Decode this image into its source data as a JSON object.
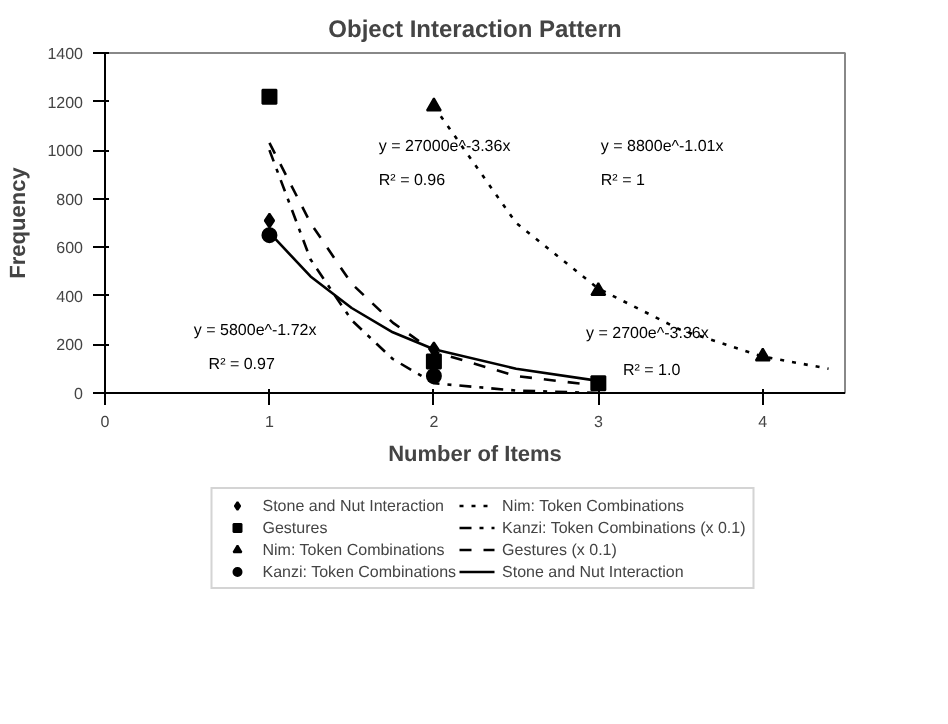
{
  "chart_data": {
    "type": "scatter",
    "title": "Object Interaction Pattern",
    "xlabel": "Number of Items",
    "ylabel": "Frequency",
    "xlim": [
      0,
      4.5
    ],
    "xticks": [
      0,
      1,
      2,
      3,
      4
    ],
    "ylim": [
      0,
      1400
    ],
    "yticks": [
      0,
      200,
      400,
      600,
      800,
      1000,
      1200,
      1400
    ],
    "grid": false,
    "legend": "bottom",
    "series": [
      {
        "name": "Stone and Nut Interaction",
        "marker": "diamond",
        "color": "#000000",
        "x": [
          1,
          2
        ],
        "values": [
          710,
          180
        ]
      },
      {
        "name": "Gestures",
        "marker": "square",
        "color": "#000000",
        "x": [
          1,
          2,
          3
        ],
        "values": [
          1220,
          130,
          40
        ]
      },
      {
        "name": "Nim: Token Combinations",
        "marker": "triangle",
        "color": "#000000",
        "x": [
          2,
          3,
          4
        ],
        "values": [
          1180,
          420,
          150
        ]
      },
      {
        "name": "Kanzi: Token Combinations",
        "marker": "circle",
        "color": "#000000",
        "x": [
          1,
          2
        ],
        "values": [
          650,
          70
        ]
      },
      {
        "name": "Nim: Token Combinations",
        "type": "line",
        "line_style": "dotted",
        "color": "#000000",
        "x": [
          2,
          2.5,
          3,
          3.5,
          4,
          4.4
        ],
        "values": [
          1180,
          700,
          430,
          260,
          150,
          100
        ]
      },
      {
        "name": "Kanzi: Token Combinations (x 0.1)",
        "type": "line",
        "line_style": "dashdot",
        "color": "#000000",
        "x": [
          1,
          1.25,
          1.5,
          1.75,
          2,
          2.5,
          3
        ],
        "values": [
          1000,
          550,
          300,
          140,
          40,
          10,
          0
        ]
      },
      {
        "name": "Gestures (x 0.1)",
        "type": "line",
        "line_style": "dashed",
        "color": "#000000",
        "x": [
          1,
          1.25,
          1.5,
          1.75,
          2,
          2.5,
          3
        ],
        "values": [
          1030,
          700,
          450,
          290,
          170,
          70,
          30
        ]
      },
      {
        "name": "Stone and Nut Interaction",
        "type": "line",
        "line_style": "solid",
        "color": "#000000",
        "x": [
          1,
          1.25,
          1.5,
          1.75,
          2,
          2.5,
          3
        ],
        "values": [
          660,
          480,
          350,
          250,
          180,
          100,
          50
        ]
      }
    ],
    "annotations": [
      "y = 27000e^-3.36x",
      "R² = 0.96",
      "y = 8800e^-1.01x",
      "R² = 1",
      "y = 5800e^-1.72x",
      "R² = 0.97",
      "y = 2700e^-3.36x",
      "R² = 1.0"
    ]
  }
}
